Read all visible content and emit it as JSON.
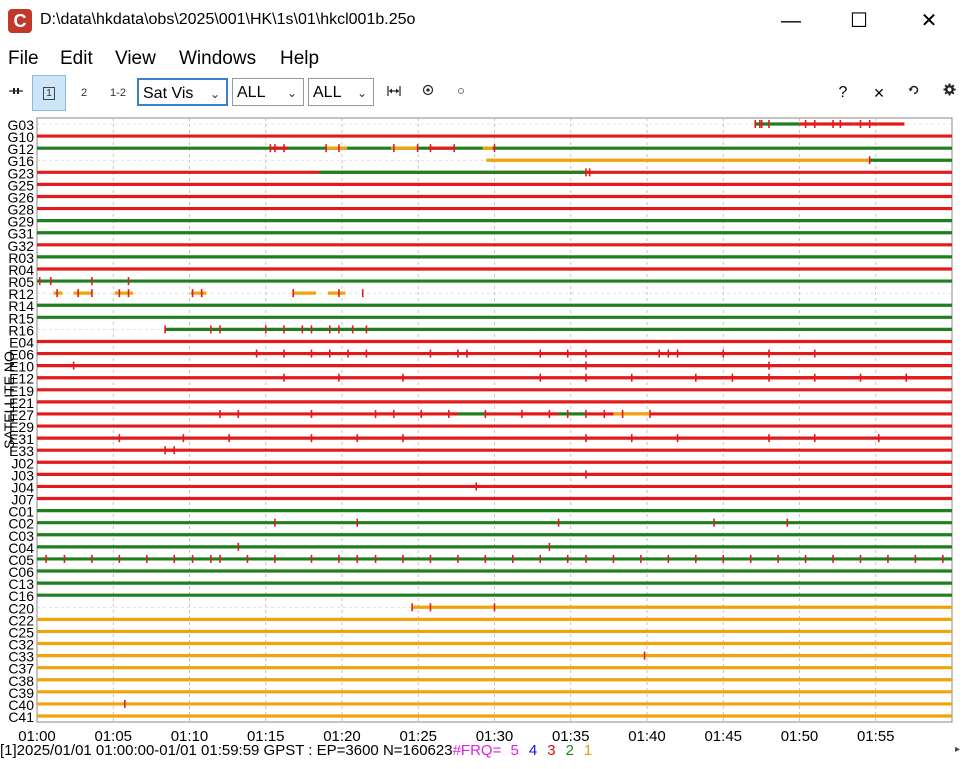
{
  "window": {
    "icon_letter": "C",
    "title": "D:\\data\\hkdata\\obs\\2025\\001\\HK\\1s\\01\\hkcl001b.25o",
    "minimize": "—",
    "maximize": "☐",
    "close": "✕"
  },
  "menu": [
    "File",
    "Edit",
    "View",
    "Windows",
    "Help"
  ],
  "toolbar": {
    "buttons": [
      "1",
      "2",
      "1-2"
    ],
    "plot_type": "Sat Vis",
    "filter1": "ALL",
    "filter2": "ALL",
    "help": "?",
    "close": "×"
  },
  "plot": {
    "ylabel": "SATELLITE NO",
    "satellites": [
      {
        "id": "G03",
        "base": "none",
        "segs": [
          [
            0.784,
            0.833,
            "green"
          ],
          [
            0.833,
            0.892,
            "red"
          ],
          [
            0.892,
            0.92,
            "red"
          ],
          [
            0.92,
            0.948,
            "red"
          ]
        ],
        "ticks": [
          0.785,
          0.79,
          0.792,
          0.8,
          0.84,
          0.85,
          0.87,
          0.878,
          0.9,
          0.91
        ]
      },
      {
        "id": "G10",
        "base": "red",
        "segs": [],
        "ticks": []
      },
      {
        "id": "G12",
        "base": "green",
        "segs": [
          [
            0.255,
            0.274,
            "red"
          ],
          [
            0.316,
            0.339,
            "orange"
          ],
          [
            0.387,
            0.417,
            "orange"
          ],
          [
            0.428,
            0.456,
            "red"
          ],
          [
            0.487,
            0.498,
            "orange"
          ]
        ],
        "ticks": [
          0.255,
          0.26,
          0.27,
          0.316,
          0.33,
          0.39,
          0.416,
          0.43,
          0.456,
          0.5
        ]
      },
      {
        "id": "G16",
        "base": "none",
        "segs": [
          [
            0.491,
            0.91,
            "orange"
          ],
          [
            0.91,
            1.0,
            "green"
          ]
        ],
        "ticks": [
          0.91
        ]
      },
      {
        "id": "G23",
        "base": "red",
        "segs": [
          [
            0.308,
            0.6,
            "green"
          ]
        ],
        "ticks": [
          0.6,
          0.604
        ]
      },
      {
        "id": "G25",
        "base": "red",
        "segs": [],
        "ticks": []
      },
      {
        "id": "G26",
        "base": "red",
        "segs": [],
        "ticks": []
      },
      {
        "id": "G28",
        "base": "red",
        "segs": [],
        "ticks": []
      },
      {
        "id": "G29",
        "base": "green",
        "segs": [],
        "ticks": []
      },
      {
        "id": "G31",
        "base": "green",
        "segs": [],
        "ticks": []
      },
      {
        "id": "G32",
        "base": "red",
        "segs": [],
        "ticks": []
      },
      {
        "id": "R03",
        "base": "green",
        "segs": [],
        "ticks": []
      },
      {
        "id": "R04",
        "base": "red",
        "segs": [],
        "ticks": []
      },
      {
        "id": "R05",
        "base": "green",
        "segs": [],
        "ticks": [
          0.003,
          0.015,
          0.06,
          0.1
        ]
      },
      {
        "id": "R12",
        "base": "none",
        "segs": [
          [
            0.018,
            0.028,
            "orange"
          ],
          [
            0.04,
            0.06,
            "orange"
          ],
          [
            0.085,
            0.105,
            "orange"
          ],
          [
            0.168,
            0.185,
            "orange"
          ],
          [
            0.28,
            0.305,
            "orange"
          ],
          [
            0.318,
            0.337,
            "orange"
          ]
        ],
        "ticks": [
          0.022,
          0.045,
          0.06,
          0.09,
          0.1,
          0.17,
          0.18,
          0.28,
          0.33,
          0.356
        ]
      },
      {
        "id": "R14",
        "base": "green",
        "segs": [],
        "ticks": []
      },
      {
        "id": "R15",
        "base": "green",
        "segs": [],
        "ticks": []
      },
      {
        "id": "R16",
        "base": "none",
        "segs": [
          [
            0.14,
            1.0,
            "green"
          ]
        ],
        "ticks": [
          0.14,
          0.19,
          0.2,
          0.25,
          0.27,
          0.29,
          0.3,
          0.32,
          0.33,
          0.345,
          0.36
        ]
      },
      {
        "id": "E04",
        "base": "red",
        "segs": [],
        "ticks": []
      },
      {
        "id": "E06",
        "base": "red",
        "segs": [
          [
            0.295,
            0.315,
            "red"
          ],
          [
            0.43,
            0.45,
            "red"
          ],
          [
            0.58,
            0.6,
            "red"
          ]
        ],
        "ticks": [
          0.24,
          0.27,
          0.3,
          0.32,
          0.34,
          0.36,
          0.43,
          0.46,
          0.47,
          0.55,
          0.58,
          0.6,
          0.68,
          0.69,
          0.7,
          0.75,
          0.8,
          0.85
        ]
      },
      {
        "id": "E10",
        "base": "red",
        "segs": [],
        "ticks": [
          0.04,
          0.6,
          0.8
        ]
      },
      {
        "id": "E12",
        "base": "red",
        "segs": [
          [
            0.72,
            1.0,
            "red"
          ]
        ],
        "ticks": [
          0.27,
          0.33,
          0.4,
          0.55,
          0.6,
          0.65,
          0.72,
          0.76,
          0.8,
          0.85,
          0.9,
          0.95
        ]
      },
      {
        "id": "E19",
        "base": "red",
        "segs": [],
        "ticks": []
      },
      {
        "id": "E21",
        "base": "red",
        "segs": [],
        "ticks": []
      },
      {
        "id": "E27",
        "base": "red",
        "segs": [
          [
            0.37,
            0.39,
            "red"
          ],
          [
            0.45,
            0.46,
            "red"
          ],
          [
            0.46,
            0.49,
            "green"
          ],
          [
            0.53,
            0.57,
            "red"
          ],
          [
            0.57,
            0.6,
            "green"
          ],
          [
            0.63,
            0.67,
            "orange"
          ]
        ],
        "ticks": [
          0.2,
          0.22,
          0.3,
          0.37,
          0.39,
          0.42,
          0.45,
          0.49,
          0.53,
          0.56,
          0.58,
          0.6,
          0.62,
          0.64,
          0.67
        ]
      },
      {
        "id": "E29",
        "base": "red",
        "segs": [],
        "ticks": []
      },
      {
        "id": "E31",
        "base": "red",
        "segs": [],
        "ticks": [
          0.09,
          0.16,
          0.21,
          0.3,
          0.35,
          0.4,
          0.6,
          0.65,
          0.7,
          0.8,
          0.85,
          0.92
        ]
      },
      {
        "id": "E33",
        "base": "red",
        "segs": [
          [
            0.14,
            0.15,
            "red"
          ]
        ],
        "ticks": [
          0.14,
          0.15
        ]
      },
      {
        "id": "J02",
        "base": "red",
        "segs": [],
        "ticks": []
      },
      {
        "id": "J03",
        "base": "red",
        "segs": [],
        "ticks": [
          0.6
        ]
      },
      {
        "id": "J04",
        "base": "red",
        "segs": [],
        "ticks": [
          0.48
        ]
      },
      {
        "id": "J07",
        "base": "red",
        "segs": [],
        "ticks": []
      },
      {
        "id": "C01",
        "base": "green",
        "segs": [],
        "ticks": []
      },
      {
        "id": "C02",
        "base": "green",
        "segs": [],
        "ticks": [
          0.26,
          0.35,
          0.57,
          0.74,
          0.82
        ]
      },
      {
        "id": "C03",
        "base": "green",
        "segs": [],
        "ticks": []
      },
      {
        "id": "C04",
        "base": "green",
        "segs": [],
        "ticks": [
          0.22,
          0.56
        ]
      },
      {
        "id": "C05",
        "base": "green",
        "segs": [],
        "ticks": [
          0.01,
          0.03,
          0.06,
          0.09,
          0.12,
          0.15,
          0.17,
          0.19,
          0.2,
          0.23,
          0.26,
          0.3,
          0.33,
          0.35,
          0.37,
          0.4,
          0.43,
          0.46,
          0.49,
          0.52,
          0.55,
          0.58,
          0.6,
          0.63,
          0.66,
          0.69,
          0.72,
          0.75,
          0.78,
          0.81,
          0.84,
          0.87,
          0.9,
          0.93,
          0.96,
          0.99
        ]
      },
      {
        "id": "C06",
        "base": "green",
        "segs": [],
        "ticks": []
      },
      {
        "id": "C13",
        "base": "green",
        "segs": [],
        "ticks": []
      },
      {
        "id": "C16",
        "base": "green",
        "segs": [],
        "ticks": []
      },
      {
        "id": "C20",
        "base": "none",
        "segs": [
          [
            0.41,
            0.5,
            "orange"
          ],
          [
            0.5,
            1.0,
            "orange"
          ]
        ],
        "ticks": [
          0.41,
          0.43,
          0.5
        ]
      },
      {
        "id": "C22",
        "base": "orange",
        "segs": [],
        "ticks": []
      },
      {
        "id": "C25",
        "base": "orange",
        "segs": [],
        "ticks": []
      },
      {
        "id": "C32",
        "base": "orange",
        "segs": [],
        "ticks": []
      },
      {
        "id": "C33",
        "base": "orange",
        "segs": [],
        "ticks": [
          0.664
        ]
      },
      {
        "id": "C37",
        "base": "orange",
        "segs": [],
        "ticks": []
      },
      {
        "id": "C38",
        "base": "orange",
        "segs": [],
        "ticks": []
      },
      {
        "id": "C39",
        "base": "orange",
        "segs": [],
        "ticks": []
      },
      {
        "id": "C40",
        "base": "orange",
        "segs": [],
        "ticks": [
          0.096
        ]
      },
      {
        "id": "C41",
        "base": "orange",
        "segs": [],
        "ticks": []
      }
    ],
    "xticks": [
      "01:00",
      "01:05",
      "01:10",
      "01:15",
      "01:20",
      "01:25",
      "01:30",
      "01:35",
      "01:40",
      "01:45",
      "01:50",
      "01:55"
    ],
    "colors": {
      "red": "#e31a1c",
      "green": "#1f7f1f",
      "orange": "#f0a30a",
      "grid": "#b8b8b8"
    }
  },
  "status": {
    "text": "[1]2025/01/01 01:00:00-01/01 01:59:59 GPST : EP=3600 N=160623 ",
    "frq_label": "#FRQ=",
    "frq": [
      {
        "v": "5",
        "color": "#e020e0"
      },
      {
        "v": "4",
        "color": "#1010e0"
      },
      {
        "v": "3",
        "color": "#e01010"
      },
      {
        "v": "2",
        "color": "#1a8a1a"
      },
      {
        "v": "1",
        "color": "#e0a010"
      }
    ],
    "corner": "▸"
  }
}
